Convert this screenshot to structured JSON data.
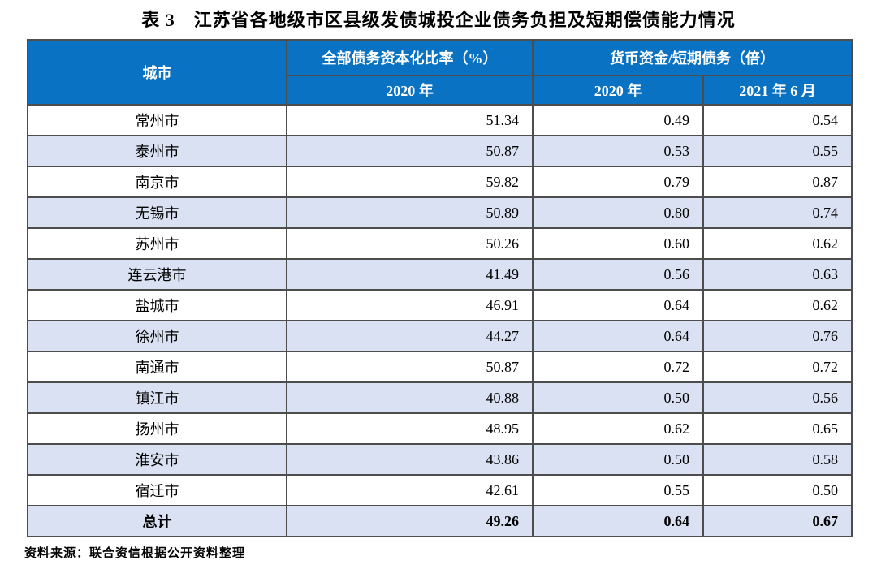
{
  "title": "表 3　江苏省各地级市区县级发债城投企业债务负担及短期偿债能力情况",
  "table": {
    "headers": {
      "city": "城市",
      "debt_group": "全部债务资本化比率（%）",
      "cash_group": "货币资金/短期债务（倍）",
      "debt_2020": "2020 年",
      "cash_2020": "2020 年",
      "cash_2021": "2021 年 6 月"
    },
    "rows": [
      {
        "city": "常州市",
        "debt_2020": "51.34",
        "cash_2020": "0.49",
        "cash_2021": "0.54"
      },
      {
        "city": "泰州市",
        "debt_2020": "50.87",
        "cash_2020": "0.53",
        "cash_2021": "0.55"
      },
      {
        "city": "南京市",
        "debt_2020": "59.82",
        "cash_2020": "0.79",
        "cash_2021": "0.87"
      },
      {
        "city": "无锡市",
        "debt_2020": "50.89",
        "cash_2020": "0.80",
        "cash_2021": "0.74"
      },
      {
        "city": "苏州市",
        "debt_2020": "50.26",
        "cash_2020": "0.60",
        "cash_2021": "0.62"
      },
      {
        "city": "连云港市",
        "debt_2020": "41.49",
        "cash_2020": "0.56",
        "cash_2021": "0.63"
      },
      {
        "city": "盐城市",
        "debt_2020": "46.91",
        "cash_2020": "0.64",
        "cash_2021": "0.62"
      },
      {
        "city": "徐州市",
        "debt_2020": "44.27",
        "cash_2020": "0.64",
        "cash_2021": "0.76"
      },
      {
        "city": "南通市",
        "debt_2020": "50.87",
        "cash_2020": "0.72",
        "cash_2021": "0.72"
      },
      {
        "city": "镇江市",
        "debt_2020": "40.88",
        "cash_2020": "0.50",
        "cash_2021": "0.56"
      },
      {
        "city": "扬州市",
        "debt_2020": "48.95",
        "cash_2020": "0.62",
        "cash_2021": "0.65"
      },
      {
        "city": "淮安市",
        "debt_2020": "43.86",
        "cash_2020": "0.50",
        "cash_2021": "0.58"
      },
      {
        "city": "宿迁市",
        "debt_2020": "42.61",
        "cash_2020": "0.55",
        "cash_2021": "0.50"
      }
    ],
    "total": {
      "city": "总计",
      "debt_2020": "49.26",
      "cash_2020": "0.64",
      "cash_2021": "0.67"
    }
  },
  "source_note": "资料来源：联合资信根据公开资料整理",
  "colors": {
    "header_bg": "#0a72c2",
    "header_text": "#ffffff",
    "row_alt_bg": "#d9e1f2",
    "border": "#4d4d4d"
  }
}
